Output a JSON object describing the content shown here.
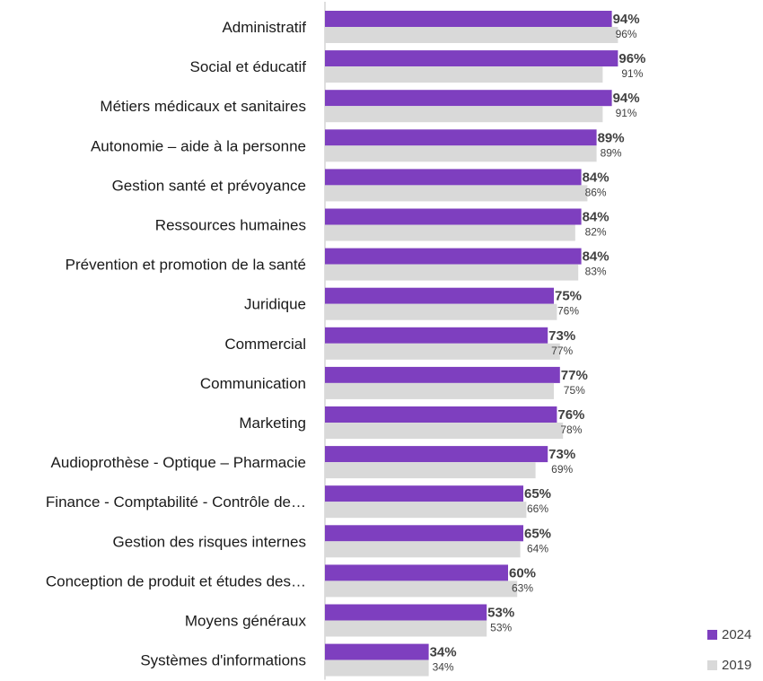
{
  "chart_data": {
    "type": "bar",
    "orientation": "horizontal",
    "categories": [
      "Administratif",
      "Social et éducatif",
      "Métiers médicaux et sanitaires",
      "Autonomie – aide à la personne",
      "Gestion santé et prévoyance",
      "Ressources humaines",
      "Prévention et promotion de la santé",
      "Juridique",
      "Commercial",
      "Communication",
      "Marketing",
      "Audioprothèse - Optique – Pharmacie",
      "Finance - Comptabilité - Contrôle de…",
      "Gestion des risques internes",
      "Conception de produit et études des…",
      "Moyens généraux",
      "Systèmes d'informations"
    ],
    "series": [
      {
        "name": "2024",
        "color": "#7e3fbf",
        "values": [
          94,
          96,
          94,
          89,
          84,
          84,
          84,
          75,
          73,
          77,
          76,
          73,
          65,
          65,
          60,
          53,
          34
        ],
        "labels": [
          "94%",
          "96%",
          "94%",
          "89%",
          "84%",
          "84%",
          "84%",
          "75%",
          "73%",
          "77%",
          "76%",
          "73%",
          "65%",
          "65%",
          "60%",
          "53%",
          "34%"
        ]
      },
      {
        "name": "2019",
        "color": "#d9d9d9",
        "values": [
          96,
          91,
          91,
          89,
          86,
          82,
          83,
          76,
          77,
          75,
          78,
          69,
          66,
          64,
          63,
          53,
          34
        ],
        "labels": [
          "96%",
          "91%",
          "91%",
          "89%",
          "86%",
          "82%",
          "83%",
          "76%",
          "77%",
          "75%",
          "78%",
          "69%",
          "66%",
          "64%",
          "63%",
          "53%",
          "34%"
        ]
      }
    ],
    "xlim": [
      0,
      100
    ],
    "grid": false,
    "legend_position": "bottom-right"
  }
}
